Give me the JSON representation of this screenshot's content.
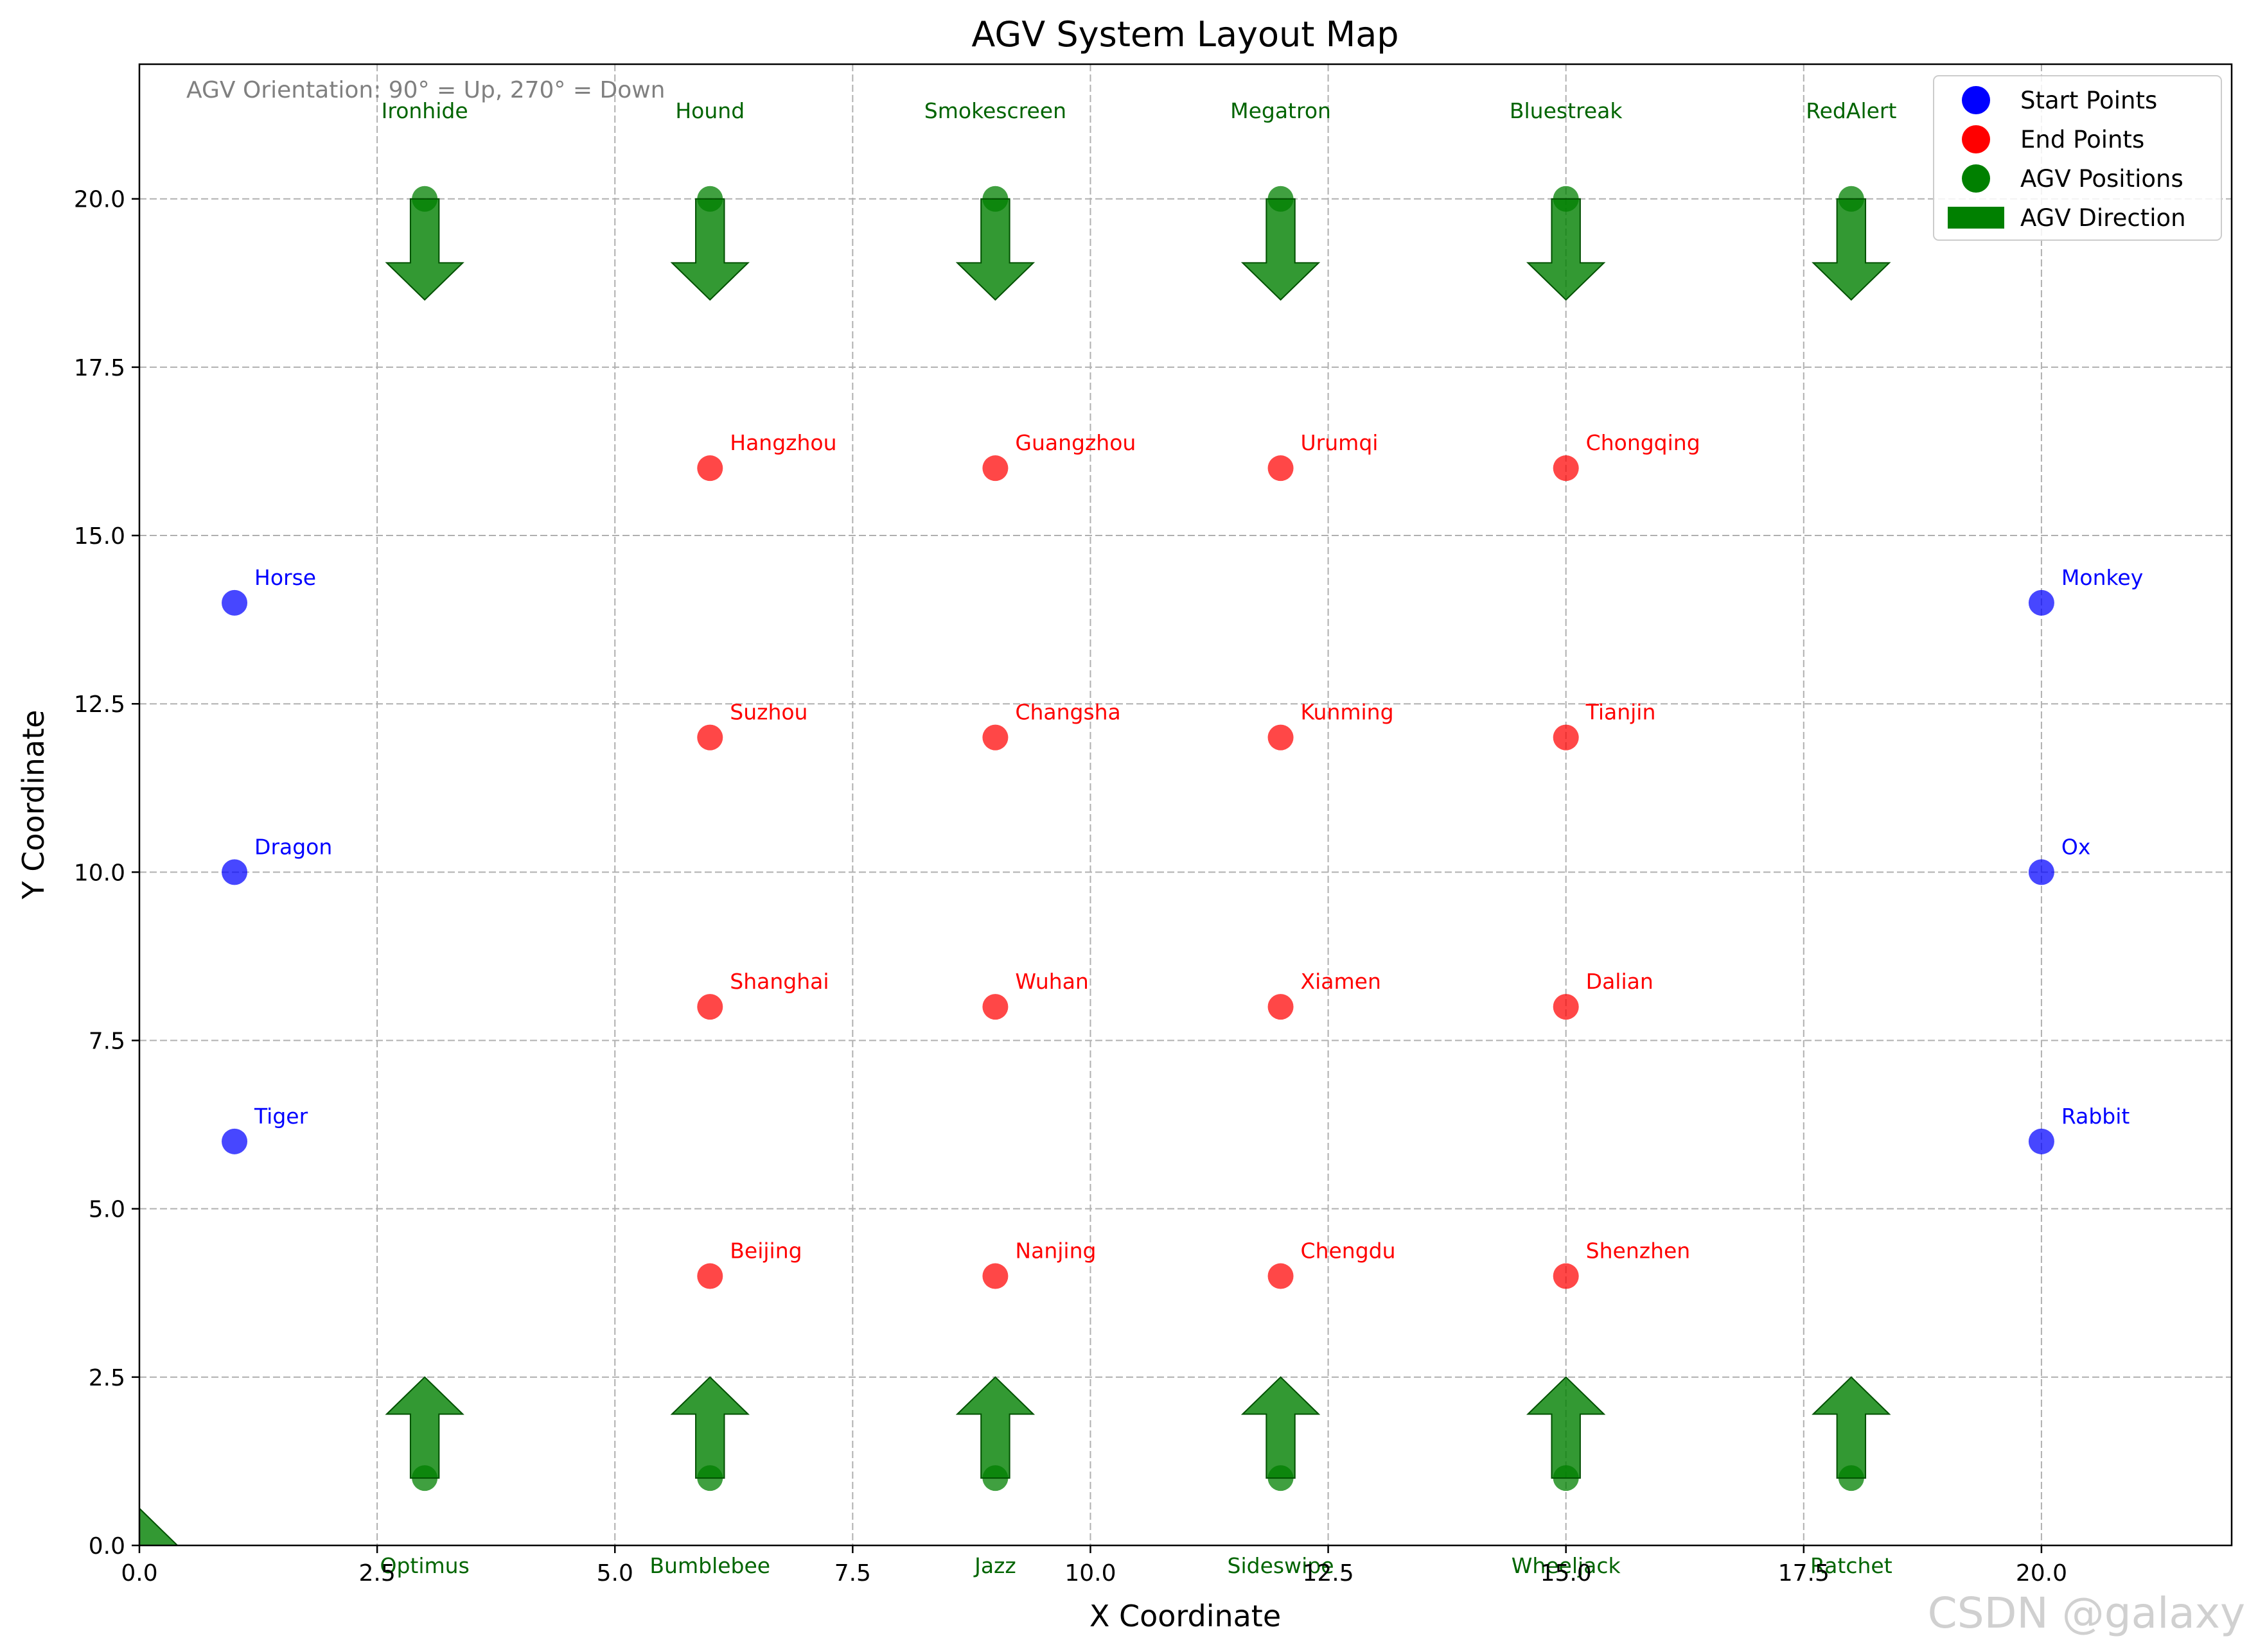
{
  "chart_data": {
    "type": "scatter",
    "title": "AGV System Layout Map",
    "xlabel": "X Coordinate",
    "ylabel": "Y Coordinate",
    "xlim": [
      0,
      22
    ],
    "ylim": [
      0,
      22
    ],
    "x_ticks": [
      0,
      2.5,
      5,
      7.5,
      10,
      12.5,
      15,
      17.5,
      20
    ],
    "y_ticks": [
      0,
      2.5,
      5,
      7.5,
      10,
      12.5,
      15,
      17.5,
      20
    ],
    "x_tick_labels": [
      "0.0",
      "2.5",
      "5.0",
      "7.5",
      "10.0",
      "12.5",
      "15.0",
      "17.5",
      "20.0"
    ],
    "y_tick_labels": [
      "0.0",
      "2.5",
      "5.0",
      "7.5",
      "10.0",
      "12.5",
      "15.0",
      "17.5",
      "20.0"
    ],
    "grid": true,
    "legend_position": "top-right",
    "annotation": "AGV Orientation: 90° = Up, 270° = Down",
    "watermark": "CSDN @galaxy",
    "colors": {
      "start": "#0000ff",
      "end": "#ff0000",
      "agv": "#008000",
      "agv_label": "#006400",
      "grid": "#b0b0b0",
      "annotation": "#808080",
      "watermark": "#d0d0d0"
    },
    "legend": [
      {
        "label": "Start Points",
        "kind": "start"
      },
      {
        "label": "End Points",
        "kind": "end"
      },
      {
        "label": "AGV Positions",
        "kind": "agv"
      },
      {
        "label": "AGV Direction",
        "kind": "direction"
      }
    ],
    "series": [
      {
        "name": "Start Points",
        "kind": "start",
        "points": [
          {
            "label": "Horse",
            "x": 1,
            "y": 14
          },
          {
            "label": "Dragon",
            "x": 1,
            "y": 10
          },
          {
            "label": "Tiger",
            "x": 1,
            "y": 6
          },
          {
            "label": "Monkey",
            "x": 20,
            "y": 14
          },
          {
            "label": "Ox",
            "x": 20,
            "y": 10
          },
          {
            "label": "Rabbit",
            "x": 20,
            "y": 6
          }
        ]
      },
      {
        "name": "End Points",
        "kind": "end",
        "points": [
          {
            "label": "Hangzhou",
            "x": 6,
            "y": 16
          },
          {
            "label": "Guangzhou",
            "x": 9,
            "y": 16
          },
          {
            "label": "Urumqi",
            "x": 12,
            "y": 16
          },
          {
            "label": "Chongqing",
            "x": 15,
            "y": 16
          },
          {
            "label": "Suzhou",
            "x": 6,
            "y": 12
          },
          {
            "label": "Changsha",
            "x": 9,
            "y": 12
          },
          {
            "label": "Kunming",
            "x": 12,
            "y": 12
          },
          {
            "label": "Tianjin",
            "x": 15,
            "y": 12
          },
          {
            "label": "Shanghai",
            "x": 6,
            "y": 8
          },
          {
            "label": "Wuhan",
            "x": 9,
            "y": 8
          },
          {
            "label": "Xiamen",
            "x": 12,
            "y": 8
          },
          {
            "label": "Dalian",
            "x": 15,
            "y": 8
          },
          {
            "label": "Beijing",
            "x": 6,
            "y": 4
          },
          {
            "label": "Nanjing",
            "x": 9,
            "y": 4
          },
          {
            "label": "Chengdu",
            "x": 12,
            "y": 4
          },
          {
            "label": "Shenzhen",
            "x": 15,
            "y": 4
          }
        ]
      },
      {
        "name": "AGV Positions",
        "kind": "agv",
        "points": [
          {
            "label": "Ironhide",
            "x": 3,
            "y": 20,
            "orientation": 270
          },
          {
            "label": "Hound",
            "x": 6,
            "y": 20,
            "orientation": 270
          },
          {
            "label": "Smokescreen",
            "x": 9,
            "y": 20,
            "orientation": 270
          },
          {
            "label": "Megatron",
            "x": 12,
            "y": 20,
            "orientation": 270
          },
          {
            "label": "Bluestreak",
            "x": 15,
            "y": 20,
            "orientation": 270
          },
          {
            "label": "RedAlert",
            "x": 18,
            "y": 20,
            "orientation": 270
          },
          {
            "label": "Optimus",
            "x": 3,
            "y": 1,
            "orientation": 90
          },
          {
            "label": "Bumblebee",
            "x": 6,
            "y": 1,
            "orientation": 90
          },
          {
            "label": "Jazz",
            "x": 9,
            "y": 1,
            "orientation": 90
          },
          {
            "label": "Sideswipe",
            "x": 12,
            "y": 1,
            "orientation": 90
          },
          {
            "label": "Wheeljack",
            "x": 15,
            "y": 1,
            "orientation": 90
          },
          {
            "label": "Ratchet",
            "x": 18,
            "y": 1,
            "orientation": 90
          }
        ]
      }
    ]
  }
}
